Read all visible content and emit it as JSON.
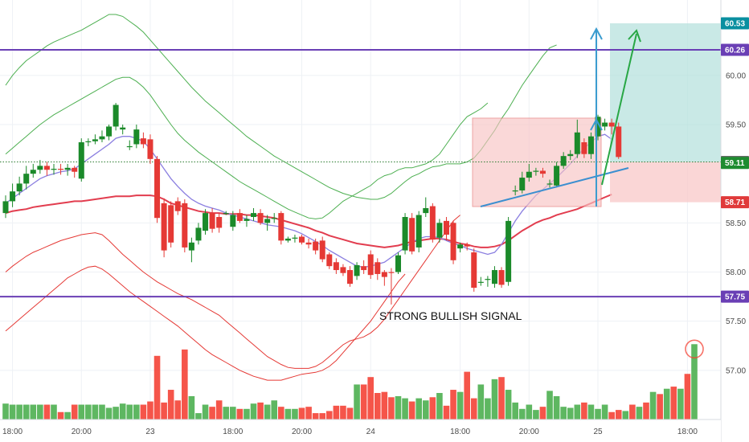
{
  "chart_data": {
    "type": "candlestick",
    "annotation": "STRONG BULLISH SIGNAL",
    "y_axis": {
      "min": 56.5,
      "max": 60.62,
      "ticks": [
        "60.00",
        "59.50",
        "58.50",
        "58.00",
        "57.50",
        "57.00"
      ],
      "tick_values": [
        60.0,
        59.5,
        58.5,
        58.0,
        57.5,
        57.0
      ]
    },
    "x_axis": {
      "ticks": [
        {
          "label": "18:00",
          "slot": 1
        },
        {
          "label": "20:00",
          "slot": 11
        },
        {
          "label": "23",
          "slot": 21
        },
        {
          "label": "18:00",
          "slot": 33
        },
        {
          "label": "20:00",
          "slot": 43
        },
        {
          "label": "24",
          "slot": 53
        },
        {
          "label": "18:00",
          "slot": 66
        },
        {
          "label": "20:00",
          "slot": 76
        },
        {
          "label": "25",
          "slot": 86
        },
        {
          "label": "18:00",
          "slot": 99
        }
      ]
    },
    "price_tags": [
      {
        "label": "60.53",
        "value": 60.53,
        "color": "#0a8fa0"
      },
      {
        "label": "60.26",
        "value": 60.26,
        "color": "#6a3fb5"
      },
      {
        "label": "59.12",
        "value": 59.12,
        "color": "#6a6a6a"
      },
      {
        "label": "59.11",
        "value": 59.11,
        "color": "#1e8c30"
      },
      {
        "label": "58.71",
        "value": 58.71,
        "color": "#e03a3a"
      },
      {
        "label": "57.75",
        "value": 57.75,
        "color": "#6a3fb5"
      }
    ],
    "horizontal_lines": [
      {
        "value": 60.26,
        "color": "#6a3fb5"
      },
      {
        "value": 57.75,
        "color": "#6a3fb5"
      }
    ],
    "candles": [
      [
        58.6,
        58.72,
        58.55,
        58.78
      ],
      [
        58.72,
        58.82,
        58.66,
        58.9
      ],
      [
        58.82,
        58.9,
        58.78,
        58.97
      ],
      [
        58.9,
        59.0,
        58.84,
        59.08
      ],
      [
        59.0,
        59.04,
        58.96,
        59.1
      ],
      [
        59.04,
        59.08,
        59.0,
        59.14
      ],
      [
        59.08,
        59.04,
        58.98,
        59.12
      ],
      [
        59.04,
        59.05,
        58.99,
        59.1
      ],
      [
        59.05,
        59.04,
        58.99,
        59.1
      ],
      [
        59.04,
        59.06,
        58.98,
        59.1
      ],
      [
        59.06,
        59.02,
        58.96,
        59.08
      ],
      [
        58.95,
        59.32,
        58.92,
        59.36
      ],
      [
        59.32,
        59.33,
        59.28,
        59.36
      ],
      [
        59.33,
        59.35,
        59.3,
        59.4
      ],
      [
        59.35,
        59.38,
        59.32,
        59.44
      ],
      [
        59.38,
        59.48,
        59.34,
        59.5
      ],
      [
        59.48,
        59.7,
        59.44,
        59.72
      ],
      [
        59.45,
        59.47,
        59.4,
        59.5
      ],
      [
        59.28,
        59.28,
        59.24,
        59.34
      ],
      [
        59.3,
        59.45,
        59.26,
        59.5
      ],
      [
        59.36,
        59.3,
        59.26,
        59.42
      ],
      [
        59.35,
        59.15,
        59.1,
        59.4
      ],
      [
        59.15,
        58.55,
        58.5,
        59.18
      ],
      [
        58.7,
        58.22,
        58.15,
        58.75
      ],
      [
        58.68,
        58.3,
        58.25,
        58.72
      ],
      [
        58.72,
        58.62,
        58.58,
        58.76
      ],
      [
        58.7,
        58.25,
        58.2,
        58.74
      ],
      [
        58.22,
        58.3,
        58.1,
        58.35
      ],
      [
        58.32,
        58.45,
        58.28,
        58.5
      ],
      [
        58.42,
        58.6,
        58.38,
        58.64
      ],
      [
        58.6,
        58.44,
        58.4,
        58.65
      ],
      [
        58.56,
        58.45,
        58.4,
        58.6
      ],
      [
        58.6,
        58.6,
        58.58,
        58.62
      ],
      [
        58.46,
        58.58,
        58.42,
        58.62
      ],
      [
        58.6,
        58.52,
        58.5,
        58.64
      ],
      [
        58.52,
        58.54,
        58.46,
        58.58
      ],
      [
        58.56,
        58.6,
        58.52,
        58.65
      ],
      [
        58.6,
        58.5,
        58.48,
        58.64
      ],
      [
        58.5,
        58.54,
        58.42,
        58.58
      ],
      [
        58.54,
        58.55,
        58.5,
        58.6
      ],
      [
        58.6,
        58.32,
        58.28,
        58.62
      ],
      [
        58.32,
        58.34,
        58.3,
        58.36
      ],
      [
        58.34,
        58.35,
        58.3,
        58.38
      ],
      [
        58.36,
        58.3,
        58.28,
        58.38
      ],
      [
        58.3,
        58.28,
        58.24,
        58.34
      ],
      [
        58.31,
        58.22,
        58.18,
        58.34
      ],
      [
        58.32,
        58.13,
        58.1,
        58.36
      ],
      [
        58.18,
        58.06,
        58.03,
        58.2
      ],
      [
        58.1,
        58.02,
        57.98,
        58.14
      ],
      [
        58.05,
        57.99,
        57.96,
        58.08
      ],
      [
        58.02,
        57.88,
        57.85,
        58.06
      ],
      [
        57.96,
        58.07,
        57.92,
        58.1
      ],
      [
        58.06,
        58.02,
        57.98,
        58.12
      ],
      [
        58.18,
        57.97,
        57.93,
        58.22
      ],
      [
        58.1,
        57.98,
        57.92,
        58.14
      ],
      [
        58.0,
        57.95,
        57.86,
        58.02
      ],
      [
        58.0,
        57.99,
        57.67,
        58.04
      ],
      [
        58.0,
        58.17,
        57.98,
        58.2
      ],
      [
        58.22,
        58.56,
        58.18,
        58.6
      ],
      [
        58.55,
        58.21,
        58.18,
        58.6
      ],
      [
        58.25,
        58.58,
        58.2,
        58.62
      ],
      [
        58.6,
        58.65,
        58.56,
        58.76
      ],
      [
        58.67,
        58.33,
        58.3,
        58.7
      ],
      [
        58.35,
        58.5,
        58.3,
        58.54
      ],
      [
        58.52,
        58.38,
        58.32,
        58.56
      ],
      [
        58.5,
        58.12,
        58.08,
        58.52
      ],
      [
        58.24,
        58.28,
        58.2,
        58.3
      ],
      [
        58.28,
        58.26,
        58.22,
        58.3
      ],
      [
        58.2,
        57.84,
        57.8,
        58.24
      ],
      [
        57.9,
        57.9,
        57.86,
        57.95
      ],
      [
        57.92,
        57.93,
        57.85,
        57.96
      ],
      [
        57.88,
        58.02,
        57.84,
        58.06
      ],
      [
        58.02,
        57.87,
        57.84,
        58.05
      ],
      [
        57.9,
        58.52,
        57.86,
        58.56
      ],
      [
        58.82,
        58.83,
        58.78,
        58.88
      ],
      [
        58.83,
        58.96,
        58.8,
        59.02
      ],
      [
        58.96,
        59.02,
        58.92,
        59.1
      ],
      [
        59.02,
        59.03,
        58.98,
        59.06
      ],
      [
        59.03,
        59.0,
        58.96,
        59.06
      ],
      [
        58.9,
        58.9,
        58.86,
        58.94
      ],
      [
        58.88,
        59.08,
        58.86,
        59.12
      ],
      [
        59.08,
        59.18,
        59.05,
        59.22
      ],
      [
        59.18,
        59.2,
        59.14,
        59.24
      ],
      [
        59.2,
        59.42,
        59.16,
        59.55
      ],
      [
        59.32,
        59.2,
        59.16,
        59.36
      ],
      [
        59.2,
        59.38,
        59.15,
        59.42
      ],
      [
        59.38,
        59.58,
        59.34,
        59.6
      ],
      [
        59.48,
        59.52,
        59.44,
        59.56
      ],
      [
        59.52,
        59.48,
        59.4,
        59.56
      ],
      [
        59.48,
        59.17,
        59.15,
        59.52
      ]
    ],
    "volume": {
      "max": 100,
      "values": [
        15,
        14,
        14,
        14,
        14,
        14,
        14,
        14,
        7,
        7,
        14,
        14,
        14,
        14,
        14,
        11,
        12,
        15,
        14,
        14,
        14,
        17,
        60,
        16,
        28,
        18,
        66,
        22,
        6,
        14,
        12,
        18,
        12,
        12,
        10,
        10,
        15,
        16,
        14,
        18,
        12,
        10,
        10,
        11,
        12,
        6,
        6,
        8,
        13,
        13,
        11,
        33,
        33,
        40,
        25,
        26,
        21,
        22,
        20,
        17,
        20,
        18,
        21,
        25,
        13,
        28,
        26,
        45,
        20,
        33,
        20,
        38,
        40,
        28,
        16,
        10,
        14,
        9,
        12,
        27,
        22,
        12,
        11,
        14,
        16,
        14,
        10,
        14,
        7,
        9,
        8,
        14,
        12,
        16,
        26,
        24,
        29,
        31,
        29,
        43,
        71
      ]
    },
    "moving_average_red": [
      58.6,
      58.62,
      58.63,
      58.64,
      58.66,
      58.67,
      58.68,
      58.69,
      58.7,
      58.71,
      58.72,
      58.72,
      58.73,
      58.74,
      58.75,
      58.76,
      58.77,
      58.77,
      58.77,
      58.78,
      58.78,
      58.78,
      58.77,
      58.74,
      58.7,
      58.68,
      58.66,
      58.64,
      58.62,
      58.61,
      58.6,
      58.6,
      58.59,
      58.59,
      58.59,
      58.58,
      58.58,
      58.57,
      58.56,
      58.55,
      58.53,
      58.51,
      58.49,
      58.47,
      58.45,
      58.42,
      58.4,
      58.37,
      58.35,
      58.33,
      58.31,
      58.29,
      58.28,
      58.27,
      58.26,
      58.25,
      58.26,
      58.27,
      58.29,
      58.31,
      58.32,
      58.33,
      58.34,
      58.34,
      58.33,
      58.31,
      58.29,
      58.28,
      58.26,
      58.25,
      58.25,
      58.26,
      58.28,
      58.32,
      58.37,
      58.42,
      58.46,
      58.5,
      58.53,
      58.55,
      58.58,
      58.6,
      58.62,
      58.64,
      58.67,
      58.7,
      58.73,
      58.76,
      58.79
    ],
    "moving_average_blue": [
      58.7,
      58.75,
      58.8,
      58.85,
      58.9,
      58.95,
      58.98,
      59.0,
      59.02,
      59.03,
      59.05,
      59.1,
      59.15,
      59.2,
      59.25,
      59.3,
      59.36,
      59.38,
      59.38,
      59.36,
      59.33,
      59.25,
      59.15,
      59.05,
      58.95,
      58.87,
      58.8,
      58.74,
      58.7,
      58.67,
      58.65,
      58.63,
      58.6,
      58.58,
      58.56,
      58.54,
      58.52,
      58.5,
      58.48,
      58.47,
      58.46,
      58.44,
      58.42,
      58.39,
      58.35,
      58.31,
      58.27,
      58.22,
      58.18,
      58.14,
      58.1,
      58.06,
      58.05,
      58.06,
      58.08,
      58.1,
      58.15,
      58.2,
      58.25,
      58.3,
      58.34,
      58.36,
      58.36,
      58.35,
      58.32,
      58.29,
      58.27,
      58.24,
      58.22,
      58.2,
      58.18,
      58.2,
      58.28,
      58.4,
      58.52,
      58.62,
      58.7,
      58.78,
      58.84,
      58.9,
      58.96,
      59.03,
      59.1,
      59.18,
      59.26,
      59.32,
      59.38,
      59.4,
      59.35
    ],
    "bollinger_upper_outer": [
      59.9,
      60.0,
      60.08,
      60.15,
      60.2,
      60.25,
      60.3,
      60.34,
      60.37,
      60.4,
      60.43,
      60.46,
      60.5,
      60.54,
      60.58,
      60.62,
      60.62,
      60.6,
      60.55,
      60.5,
      60.44,
      60.36,
      60.28,
      60.2,
      60.12,
      60.04,
      59.96,
      59.88,
      59.81,
      59.74,
      59.68,
      59.62,
      59.56,
      59.5,
      59.44,
      59.38,
      59.33,
      59.28,
      59.23,
      59.18,
      59.14,
      59.1,
      59.06,
      59.02,
      58.98,
      58.94,
      58.9,
      58.86,
      58.83,
      58.8,
      58.78,
      58.76,
      58.75,
      58.74,
      58.74,
      58.76,
      58.8,
      58.86,
      58.92,
      58.97,
      59.0,
      59.04,
      59.07,
      59.08,
      59.1,
      59.1,
      59.1,
      59.12,
      59.16,
      59.24,
      59.34,
      59.44,
      59.56,
      59.66,
      59.78,
      59.9,
      60.0,
      60.1,
      60.2,
      60.28,
      60.31
    ],
    "bollinger_upper_inner": [
      59.2,
      59.26,
      59.32,
      59.38,
      59.44,
      59.5,
      59.55,
      59.6,
      59.64,
      59.68,
      59.72,
      59.76,
      59.8,
      59.84,
      59.88,
      59.92,
      59.96,
      59.98,
      59.98,
      59.94,
      59.88,
      59.8,
      59.7,
      59.6,
      59.5,
      59.41,
      59.34,
      59.28,
      59.22,
      59.17,
      59.12,
      59.07,
      59.02,
      58.97,
      58.92,
      58.88,
      58.84,
      58.8,
      58.76,
      58.72,
      58.68,
      58.64,
      58.61,
      58.58,
      58.55,
      58.54,
      58.55,
      58.6,
      58.66,
      58.72,
      58.76,
      58.8,
      58.84,
      58.88,
      58.94,
      58.98,
      59.0,
      59.04,
      59.06,
      59.06,
      59.08,
      59.1,
      59.14,
      59.2,
      59.3,
      59.4,
      59.5,
      59.58,
      59.62,
      59.66,
      59.72
    ],
    "bollinger_lower_inner": [
      58.0,
      58.06,
      58.11,
      58.16,
      58.2,
      58.23,
      58.26,
      58.29,
      58.32,
      58.34,
      58.36,
      58.38,
      58.39,
      58.4,
      58.38,
      58.32,
      58.25,
      58.18,
      58.12,
      58.06,
      58.0,
      57.95,
      57.9,
      57.86,
      57.82,
      57.78,
      57.75,
      57.72,
      57.68,
      57.64,
      57.6,
      57.56,
      57.5,
      57.44,
      57.38,
      57.32,
      57.26,
      57.2,
      57.14,
      57.1,
      57.06,
      57.03,
      57.02,
      57.02,
      57.02,
      57.04,
      57.08,
      57.14,
      57.2,
      57.26,
      57.3,
      57.32,
      57.34,
      57.38,
      57.44,
      57.52,
      57.62,
      57.72,
      57.82,
      57.92,
      58.02,
      58.12,
      58.22,
      58.32,
      58.42,
      58.52,
      58.58
    ],
    "bollinger_lower_outer": [
      57.4,
      57.46,
      57.52,
      57.58,
      57.64,
      57.7,
      57.76,
      57.82,
      57.88,
      57.94,
      57.98,
      58.02,
      58.05,
      58.06,
      58.03,
      57.98,
      57.92,
      57.86,
      57.8,
      57.75,
      57.7,
      57.65,
      57.6,
      57.55,
      57.5,
      57.45,
      57.39,
      57.33,
      57.27,
      57.21,
      57.16,
      57.12,
      57.08,
      57.04,
      57.0,
      56.97,
      56.94,
      56.92,
      56.9,
      56.9,
      56.9,
      56.92,
      56.94,
      56.96,
      56.97,
      56.98,
      57.0,
      57.04,
      57.1,
      57.18,
      57.26,
      57.34,
      57.42,
      57.5,
      57.6,
      57.7,
      57.8,
      57.9,
      57.98
    ]
  }
}
